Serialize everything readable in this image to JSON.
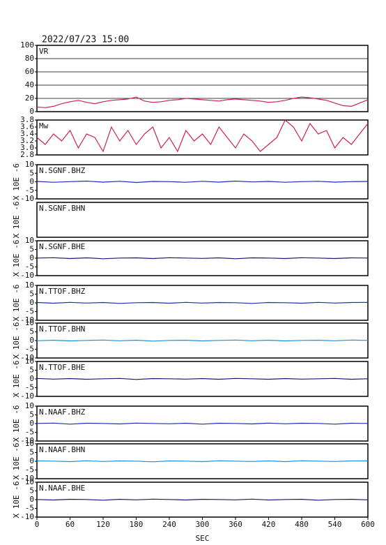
{
  "title": "2022/07/23 15:00",
  "chart_data": [
    {
      "type": "line",
      "label": "VR",
      "color": "#d0204a",
      "grid": true,
      "x": [
        0,
        15,
        30,
        45,
        60,
        75,
        90,
        105,
        120,
        135,
        150,
        165,
        180,
        195,
        210,
        225,
        240,
        255,
        270,
        285,
        300,
        315,
        330,
        345,
        360,
        375,
        390,
        405,
        420,
        435,
        450,
        465,
        480,
        495,
        510,
        525,
        540,
        555,
        570,
        585,
        600
      ],
      "values": [
        7,
        6,
        8,
        12,
        15,
        17,
        14,
        12,
        15,
        17,
        18,
        19,
        22,
        16,
        14,
        15,
        17,
        18,
        20,
        19,
        18,
        17,
        16,
        18,
        19,
        18,
        17,
        16,
        14,
        15,
        17,
        20,
        22,
        21,
        19,
        17,
        13,
        9,
        8,
        13,
        18
      ],
      "xlim": [
        0,
        600
      ],
      "ylim": [
        0,
        100
      ],
      "yticks": [
        0,
        20,
        40,
        60,
        80,
        100
      ]
    },
    {
      "type": "line",
      "label": "Mw",
      "color": "#d0204a",
      "x": [
        0,
        15,
        30,
        45,
        60,
        75,
        90,
        105,
        120,
        135,
        150,
        165,
        180,
        195,
        210,
        225,
        240,
        255,
        270,
        285,
        300,
        315,
        330,
        345,
        360,
        375,
        390,
        405,
        420,
        435,
        450,
        465,
        480,
        495,
        510,
        525,
        540,
        555,
        570,
        585,
        600
      ],
      "values": [
        3.3,
        3.1,
        3.4,
        3.2,
        3.5,
        3.0,
        3.4,
        3.3,
        2.9,
        3.6,
        3.2,
        3.5,
        3.1,
        3.4,
        3.6,
        3.0,
        3.3,
        2.9,
        3.5,
        3.2,
        3.4,
        3.1,
        3.6,
        3.3,
        3.0,
        3.4,
        3.2,
        2.9,
        3.1,
        3.3,
        3.8,
        3.6,
        3.2,
        3.7,
        3.4,
        3.5,
        3.0,
        3.3,
        3.1,
        3.4,
        3.7
      ],
      "xlim": [
        0,
        600
      ],
      "ylim": [
        2.8,
        3.8
      ],
      "yticks": [
        2.8,
        {
          "value": 3,
          "label": "3.0"
        },
        3.2,
        3.4,
        3.6,
        3.8
      ]
    },
    {
      "type": "line",
      "label": "N.SGNF.BHZ",
      "y_label": "X 10E -6",
      "color": "#1a2fb0",
      "x": [
        0,
        30,
        60,
        90,
        120,
        150,
        180,
        210,
        240,
        270,
        300,
        330,
        360,
        390,
        420,
        450,
        480,
        510,
        540,
        570,
        600
      ],
      "values": [
        0.2,
        -0.3,
        0.1,
        0.4,
        -0.2,
        0.3,
        -0.4,
        0.2,
        0.1,
        -0.3,
        0.3,
        -0.2,
        0.4,
        -0.1,
        0.2,
        -0.3,
        0.1,
        0.3,
        -0.2,
        0.1,
        0.2
      ],
      "xlim": [
        0,
        600
      ],
      "ylim": [
        -10,
        10
      ],
      "yticks": [
        -10,
        -5,
        0,
        5,
        10
      ]
    },
    {
      "type": "line",
      "label": "N.SGNF.BHN",
      "y_label": "X 10E -6",
      "xlim": [
        0,
        600
      ]
    },
    {
      "type": "line",
      "label": "N.SGNF.BHE",
      "y_label": "X 10E -6",
      "color": "#1a1a70",
      "x": [
        0,
        30,
        60,
        90,
        120,
        150,
        180,
        210,
        240,
        270,
        300,
        330,
        360,
        390,
        420,
        450,
        480,
        510,
        540,
        570,
        600
      ],
      "values": [
        0.1,
        0.3,
        -0.2,
        0.2,
        -0.3,
        0.1,
        0.2,
        -0.2,
        0.3,
        0.1,
        -0.1,
        0.2,
        -0.3,
        0.2,
        0.1,
        -0.2,
        0.3,
        0.1,
        -0.2,
        0.2,
        0.1
      ],
      "xlim": [
        0,
        600
      ],
      "ylim": [
        -10,
        10
      ],
      "yticks": [
        -10,
        -5,
        0,
        5,
        10
      ]
    },
    {
      "type": "line",
      "label": "N.TTOF.BHZ",
      "y_label": "X 10E -6",
      "color": "#1a2fb0",
      "x": [
        0,
        30,
        60,
        90,
        120,
        150,
        180,
        210,
        240,
        270,
        300,
        330,
        360,
        390,
        420,
        450,
        480,
        510,
        540,
        570,
        600
      ],
      "values": [
        0.2,
        -0.2,
        0.3,
        -0.1,
        0.2,
        -0.3,
        0.1,
        0.2,
        -0.2,
        0.3,
        -0.1,
        0.2,
        0.1,
        -0.3,
        0.2,
        0.1,
        -0.2,
        0.3,
        -0.1,
        0.2,
        0.3
      ],
      "xlim": [
        0,
        600
      ],
      "ylim": [
        -10,
        10
      ],
      "yticks": [
        -10,
        -5,
        0,
        5,
        10
      ]
    },
    {
      "type": "line",
      "label": "N.TTOF.BHN",
      "y_label": "X 10E -6",
      "color": "#1e8fe0",
      "x": [
        0,
        30,
        60,
        90,
        120,
        150,
        180,
        210,
        240,
        270,
        300,
        330,
        360,
        390,
        420,
        450,
        480,
        510,
        540,
        570,
        600
      ],
      "values": [
        -0.1,
        0.2,
        -0.2,
        0.1,
        0.3,
        -0.1,
        0.2,
        -0.3,
        0.1,
        0.2,
        -0.2,
        0.1,
        0.3,
        -0.1,
        0.2,
        -0.2,
        0.1,
        0.2,
        -0.1,
        0.3,
        0.1
      ],
      "xlim": [
        0,
        600
      ],
      "ylim": [
        -10,
        10
      ],
      "yticks": [
        -10,
        -5,
        0,
        5,
        10
      ]
    },
    {
      "type": "line",
      "label": "N.TTOF.BHE",
      "y_label": "X 10E -6",
      "color": "#1a1a70",
      "x": [
        0,
        30,
        60,
        90,
        120,
        150,
        180,
        210,
        240,
        270,
        300,
        330,
        360,
        390,
        420,
        450,
        480,
        510,
        540,
        570,
        600
      ],
      "values": [
        0.3,
        -0.1,
        0.2,
        -0.2,
        0.1,
        0.3,
        -0.3,
        0.2,
        0.1,
        -0.1,
        0.2,
        -0.2,
        0.3,
        0.1,
        -0.2,
        0.2,
        -0.1,
        0.1,
        0.3,
        -0.2,
        0.1
      ],
      "xlim": [
        0,
        600
      ],
      "ylim": [
        -10,
        10
      ],
      "yticks": [
        -10,
        -5,
        0,
        5,
        10
      ]
    },
    {
      "type": "line",
      "label": "N.NAAF.BHZ",
      "y_label": "X 10E -6",
      "color": "#1a2fb0",
      "x": [
        0,
        30,
        60,
        90,
        120,
        150,
        180,
        210,
        240,
        270,
        300,
        330,
        360,
        390,
        420,
        450,
        480,
        510,
        540,
        570,
        600
      ],
      "values": [
        0.1,
        0.3,
        -0.3,
        0.2,
        0.1,
        -0.2,
        0.3,
        0.1,
        -0.1,
        0.2,
        -0.3,
        0.2,
        0.1,
        -0.2,
        0.3,
        -0.1,
        0.2,
        0.1,
        -0.3,
        0.2,
        0.1
      ],
      "xlim": [
        0,
        600
      ],
      "ylim": [
        -10,
        10
      ],
      "yticks": [
        -10,
        -5,
        0,
        5,
        10
      ]
    },
    {
      "type": "line",
      "label": "N.NAAF.BHN",
      "y_label": "X 10E -6",
      "color": "#1e8fe0",
      "x": [
        0,
        30,
        60,
        90,
        120,
        150,
        180,
        210,
        240,
        270,
        300,
        330,
        360,
        390,
        420,
        450,
        480,
        510,
        540,
        570,
        600
      ],
      "values": [
        0.2,
        0.1,
        -0.2,
        0.3,
        -0.1,
        0.2,
        0.1,
        -0.3,
        0.2,
        0.1,
        -0.2,
        0.3,
        0.1,
        -0.1,
        0.2,
        -0.2,
        0.3,
        0.1,
        -0.1,
        0.2,
        0.2
      ],
      "xlim": [
        0,
        600
      ],
      "ylim": [
        -10,
        10
      ],
      "yticks": [
        -10,
        -5,
        0,
        5,
        10
      ]
    },
    {
      "type": "line",
      "label": "N.NAAF.BHE",
      "y_label": "X 10E -6",
      "color": "#1a1a70",
      "x": [
        0,
        30,
        60,
        90,
        120,
        150,
        180,
        210,
        240,
        270,
        300,
        330,
        360,
        390,
        420,
        450,
        480,
        510,
        540,
        570,
        600
      ],
      "values": [
        0.1,
        -0.2,
        0.2,
        0.1,
        -0.3,
        0.2,
        -0.1,
        0.3,
        0.1,
        -0.2,
        0.2,
        0.1,
        -0.1,
        0.3,
        -0.2,
        0.1,
        0.2,
        -0.3,
        0.1,
        0.2,
        -0.1
      ],
      "xlim": [
        0,
        600
      ],
      "ylim": [
        -10,
        10
      ],
      "yticks": [
        -10,
        -5,
        0,
        5,
        10
      ],
      "xticks": [
        0,
        60,
        120,
        180,
        240,
        300,
        360,
        420,
        480,
        540,
        600
      ],
      "x_label": "SEC"
    }
  ]
}
